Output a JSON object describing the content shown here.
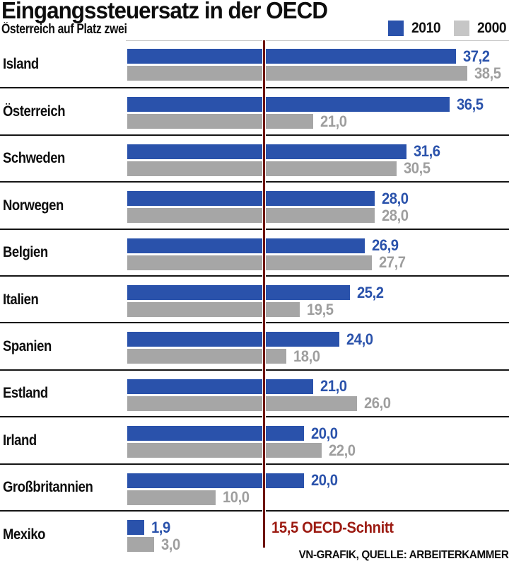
{
  "header": {
    "title": "Eingangssteuersatz in der OECD",
    "subtitle": "Österreich auf Platz zwei",
    "legend": [
      {
        "label": "2010",
        "color": "#2a52ab"
      },
      {
        "label": "2000",
        "color": "#c6c6c6"
      }
    ]
  },
  "chart_data": {
    "type": "bar",
    "orientation": "horizontal",
    "title": "Eingangssteuersatz in der OECD",
    "subtitle": "Österreich auf Platz zwei",
    "xlim": [
      0,
      43.2
    ],
    "grid": false,
    "legend_position": "top-right",
    "series_colors": {
      "2010": "#2a52ab",
      "2000": "#a6a6a6"
    },
    "categories": [
      "Island",
      "Österreich",
      "Schweden",
      "Norwegen",
      "Belgien",
      "Italien",
      "Spanien",
      "Estland",
      "Irland",
      "Großbritannien",
      "Mexiko"
    ],
    "series": [
      {
        "name": "2010",
        "values": [
          37.2,
          36.5,
          31.6,
          28.0,
          26.9,
          25.2,
          24.0,
          21.0,
          20.0,
          20.0,
          1.9
        ]
      },
      {
        "name": "2000",
        "values": [
          38.5,
          21.0,
          30.5,
          28.0,
          27.7,
          19.5,
          18.0,
          26.0,
          22.0,
          10.0,
          3.0
        ]
      }
    ],
    "rows": [
      {
        "category": "Island",
        "v2010": 37.2,
        "label2010": "37,2",
        "v2000": 38.5,
        "label2000": "38,5"
      },
      {
        "category": "Österreich",
        "v2010": 36.5,
        "label2010": "36,5",
        "v2000": 21.0,
        "label2000": "21,0"
      },
      {
        "category": "Schweden",
        "v2010": 31.6,
        "label2010": "31,6",
        "v2000": 30.5,
        "label2000": "30,5"
      },
      {
        "category": "Norwegen",
        "v2010": 28.0,
        "label2010": "28,0",
        "v2000": 28.0,
        "label2000": "28,0"
      },
      {
        "category": "Belgien",
        "v2010": 26.9,
        "label2010": "26,9",
        "v2000": 27.7,
        "label2000": "27,7"
      },
      {
        "category": "Italien",
        "v2010": 25.2,
        "label2010": "25,2",
        "v2000": 19.5,
        "label2000": "19,5"
      },
      {
        "category": "Spanien",
        "v2010": 24.0,
        "label2010": "24,0",
        "v2000": 18.0,
        "label2000": "18,0"
      },
      {
        "category": "Estland",
        "v2010": 21.0,
        "label2010": "21,0",
        "v2000": 26.0,
        "label2000": "26,0"
      },
      {
        "category": "Irland",
        "v2010": 20.0,
        "label2010": "20,0",
        "v2000": 22.0,
        "label2000": "22,0"
      },
      {
        "category": "Großbritannien",
        "v2010": 20.0,
        "label2010": "20,0",
        "v2000": 10.0,
        "label2000": "10,0"
      },
      {
        "category": "Mexiko",
        "v2010": 1.9,
        "label2010": "1,9",
        "v2000": 3.0,
        "label2000": "3,0"
      }
    ],
    "reference_line": {
      "value": 15.5,
      "label_value": "15,5",
      "label_text": "OECD-Schnitt",
      "line_color": "#6e1410",
      "text_color": "#9c1b12"
    }
  },
  "footer": {
    "credit": "VN-GRAFIK, QUELLE: ARBEITERKAMMER"
  }
}
